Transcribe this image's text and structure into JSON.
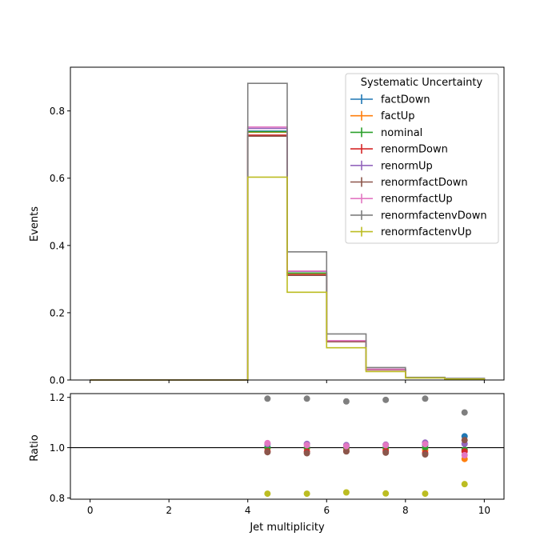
{
  "chart_data": [
    {
      "type": "line",
      "title": "",
      "xlabel": "",
      "ylabel": "Events",
      "xlim": [
        -0.5,
        10.5
      ],
      "ylim": [
        0,
        0.93
      ],
      "xticks": [
        0,
        2,
        4,
        6,
        8,
        10
      ],
      "yticks": [
        0.0,
        0.2,
        0.4,
        0.6,
        0.8
      ],
      "ytick_labels": [
        "0.0",
        "0.2",
        "0.4",
        "0.6",
        "0.8"
      ],
      "grid": false,
      "legend": {
        "title": "Systematic Uncertainty",
        "placement": "top-right"
      },
      "bin_edges": [
        0,
        1,
        2,
        3,
        4,
        5,
        6,
        7,
        8,
        9,
        10
      ],
      "series": [
        {
          "name": "factDown",
          "color": "#1f77b4",
          "values": [
            0,
            0,
            0,
            0,
            0.74,
            0.318,
            0.116,
            0.031,
            0.007,
            0.004
          ]
        },
        {
          "name": "factUp",
          "color": "#ff7f0e",
          "values": [
            0,
            0,
            0,
            0,
            0.737,
            0.317,
            0.115,
            0.031,
            0.007,
            0.003
          ]
        },
        {
          "name": "nominal",
          "color": "#2ca02c",
          "values": [
            0,
            0,
            0,
            0,
            0.738,
            0.318,
            0.116,
            0.031,
            0.007,
            0.004
          ]
        },
        {
          "name": "renormDown",
          "color": "#d62728",
          "values": [
            0,
            0,
            0,
            0,
            0.728,
            0.313,
            0.114,
            0.03,
            0.007,
            0.004
          ]
        },
        {
          "name": "renormUp",
          "color": "#9467bd",
          "values": [
            0,
            0,
            0,
            0,
            0.748,
            0.323,
            0.117,
            0.032,
            0.007,
            0.004
          ]
        },
        {
          "name": "renormfactDown",
          "color": "#8c564b",
          "values": [
            0,
            0,
            0,
            0,
            0.725,
            0.311,
            0.114,
            0.03,
            0.007,
            0.004
          ]
        },
        {
          "name": "renormfactUp",
          "color": "#e377c2",
          "values": [
            0,
            0,
            0,
            0,
            0.752,
            0.324,
            0.117,
            0.032,
            0.007,
            0.003
          ]
        },
        {
          "name": "renormfactenvDown",
          "color": "#7f7f7f",
          "values": [
            0,
            0,
            0,
            0,
            0.882,
            0.381,
            0.137,
            0.037,
            0.008,
            0.005
          ]
        },
        {
          "name": "renormfactenvUp",
          "color": "#bcbd22",
          "values": [
            0,
            0,
            0,
            0,
            0.603,
            0.261,
            0.096,
            0.025,
            0.006,
            0.003
          ]
        }
      ]
    },
    {
      "type": "scatter",
      "title": "",
      "xlabel": "Jet multiplicity",
      "ylabel": "Ratio",
      "xlim": [
        -0.5,
        10.5
      ],
      "ylim": [
        0.795,
        1.215
      ],
      "xticks": [
        0,
        2,
        4,
        6,
        8,
        10
      ],
      "yticks": [
        0.8,
        1.0,
        1.2
      ],
      "ytick_labels": [
        "0.8",
        "1.0",
        "1.2"
      ],
      "reference_line": 1.0,
      "grid": false,
      "x": [
        4.5,
        5.5,
        6.5,
        7.5,
        8.5,
        9.5
      ],
      "series": [
        {
          "name": "factDown",
          "color": "#1f77b4",
          "values": [
            1.003,
            1.0,
            1.0,
            1.0,
            1.01,
            1.045
          ]
        },
        {
          "name": "factUp",
          "color": "#ff7f0e",
          "values": [
            0.998,
            0.997,
            0.996,
            0.995,
            0.99,
            0.955
          ]
        },
        {
          "name": "nominal",
          "color": "#2ca02c",
          "values": [
            1.0,
            1.0,
            1.0,
            1.0,
            1.0,
            0.992
          ]
        },
        {
          "name": "renormDown",
          "color": "#d62728",
          "values": [
            0.985,
            0.984,
            0.986,
            0.986,
            0.978,
            0.985
          ]
        },
        {
          "name": "renormUp",
          "color": "#9467bd",
          "values": [
            1.014,
            1.015,
            1.01,
            1.012,
            1.02,
            1.015
          ]
        },
        {
          "name": "renormfactDown",
          "color": "#8c564b",
          "values": [
            0.982,
            0.978,
            0.985,
            0.98,
            0.973,
            1.03
          ]
        },
        {
          "name": "renormfactUp",
          "color": "#e377c2",
          "values": [
            1.018,
            1.01,
            1.006,
            1.01,
            1.014,
            0.97
          ]
        },
        {
          "name": "renormfactenvDown",
          "color": "#7f7f7f",
          "values": [
            1.195,
            1.195,
            1.184,
            1.19,
            1.195,
            1.14
          ]
        },
        {
          "name": "renormfactenvUp",
          "color": "#bcbd22",
          "values": [
            0.817,
            0.817,
            0.822,
            0.818,
            0.817,
            0.855
          ]
        }
      ]
    }
  ]
}
